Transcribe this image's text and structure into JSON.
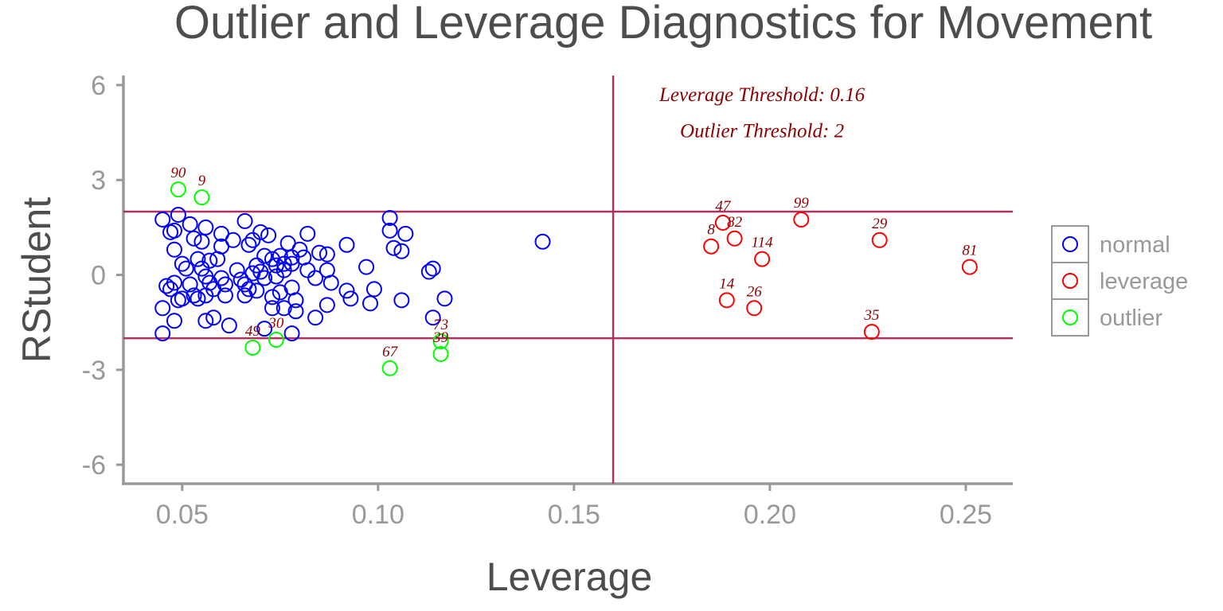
{
  "chart_data": {
    "type": "scatter",
    "title": "Outlier and Leverage Diagnostics for Movement",
    "xlabel": "Leverage",
    "ylabel": "RStudent",
    "xlim": [
      0.035,
      0.262
    ],
    "ylim": [
      -6.6,
      6.3
    ],
    "xticks": [
      "0.05",
      "0.10",
      "0.15",
      "0.20",
      "0.25"
    ],
    "xtick_values": [
      0.05,
      0.1,
      0.15,
      0.2,
      0.25
    ],
    "yticks": [
      "-6",
      "-3",
      "0",
      "3",
      "6"
    ],
    "ytick_values": [
      -6,
      -3,
      0,
      3,
      6
    ],
    "grid": false,
    "legend_placement": "right",
    "thresholds": {
      "leverage": 0.16,
      "outlier_upper": 2,
      "outlier_lower": -2,
      "line_color": "#b03060"
    },
    "annotations": {
      "leverage_text": "Leverage Threshold: 0.16",
      "leverage_text_x": 0.198,
      "leverage_text_y": 5.5,
      "outlier_text": "Outlier Threshold: 2",
      "outlier_text_x": 0.198,
      "outlier_text_y": 4.35,
      "color": "#8b0000"
    },
    "legend": [
      {
        "name": "normal",
        "color": "#0000ff"
      },
      {
        "name": "leverage",
        "color": "#ff0000"
      },
      {
        "name": "outlier",
        "color": "#00ff00"
      }
    ],
    "series": [
      {
        "name": "normal",
        "color": "#0000ff",
        "points": [
          [
            0.045,
            1.75
          ],
          [
            0.049,
            1.9
          ],
          [
            0.047,
            1.35
          ],
          [
            0.048,
            1.4
          ],
          [
            0.048,
            0.8
          ],
          [
            0.05,
            0.35
          ],
          [
            0.046,
            -0.35
          ],
          [
            0.047,
            -0.45
          ],
          [
            0.048,
            -0.25
          ],
          [
            0.049,
            -0.8
          ],
          [
            0.05,
            -0.75
          ],
          [
            0.045,
            -1.05
          ],
          [
            0.048,
            -1.45
          ],
          [
            0.045,
            -1.85
          ],
          [
            0.052,
            1.6
          ],
          [
            0.053,
            1.15
          ],
          [
            0.055,
            1.05
          ],
          [
            0.054,
            0.5
          ],
          [
            0.051,
            0.2
          ],
          [
            0.052,
            -0.3
          ],
          [
            0.053,
            -0.65
          ],
          [
            0.054,
            -0.75
          ],
          [
            0.056,
            1.5
          ],
          [
            0.057,
            0.45
          ],
          [
            0.055,
            0.2
          ],
          [
            0.056,
            -0.05
          ],
          [
            0.057,
            -0.25
          ],
          [
            0.058,
            -0.45
          ],
          [
            0.056,
            -0.65
          ],
          [
            0.058,
            -1.35
          ],
          [
            0.056,
            -1.45
          ],
          [
            0.06,
            1.3
          ],
          [
            0.06,
            0.9
          ],
          [
            0.059,
            0.5
          ],
          [
            0.06,
            -0.1
          ],
          [
            0.061,
            -0.3
          ],
          [
            0.061,
            -0.65
          ],
          [
            0.062,
            -1.6
          ],
          [
            0.063,
            1.1
          ],
          [
            0.064,
            0.15
          ],
          [
            0.065,
            -0.15
          ],
          [
            0.066,
            1.7
          ],
          [
            0.067,
            0.95
          ],
          [
            0.068,
            1.1
          ],
          [
            0.066,
            -0.3
          ],
          [
            0.067,
            -0.45
          ],
          [
            0.066,
            -0.65
          ],
          [
            0.068,
            0.05
          ],
          [
            0.069,
            0.3
          ],
          [
            0.07,
            1.35
          ],
          [
            0.071,
            0.6
          ],
          [
            0.07,
            0.1
          ],
          [
            0.071,
            -0.1
          ],
          [
            0.069,
            -0.5
          ],
          [
            0.071,
            -1.7
          ],
          [
            0.072,
            1.25
          ],
          [
            0.073,
            0.5
          ],
          [
            0.074,
            0.3
          ],
          [
            0.074,
            -0.05
          ],
          [
            0.073,
            -0.7
          ],
          [
            0.073,
            -1.05
          ],
          [
            0.075,
            0.6
          ],
          [
            0.076,
            0.35
          ],
          [
            0.076,
            0.15
          ],
          [
            0.075,
            -0.55
          ],
          [
            0.076,
            -1.05
          ],
          [
            0.077,
            1.0
          ],
          [
            0.078,
            0.55
          ],
          [
            0.078,
            0.35
          ],
          [
            0.078,
            -0.4
          ],
          [
            0.079,
            -0.8
          ],
          [
            0.079,
            -1.15
          ],
          [
            0.08,
            0.8
          ],
          [
            0.081,
            0.55
          ],
          [
            0.082,
            1.3
          ],
          [
            0.082,
            0.15
          ],
          [
            0.084,
            -0.1
          ],
          [
            0.084,
            -1.35
          ],
          [
            0.085,
            0.7
          ],
          [
            0.087,
            0.65
          ],
          [
            0.087,
            0.15
          ],
          [
            0.088,
            -0.25
          ],
          [
            0.087,
            -0.95
          ],
          [
            0.092,
            0.95
          ],
          [
            0.092,
            -0.5
          ],
          [
            0.093,
            -0.75
          ],
          [
            0.097,
            0.25
          ],
          [
            0.098,
            -0.9
          ],
          [
            0.099,
            -0.45
          ],
          [
            0.103,
            1.8
          ],
          [
            0.103,
            1.4
          ],
          [
            0.104,
            0.85
          ],
          [
            0.106,
            0.75
          ],
          [
            0.107,
            1.3
          ],
          [
            0.106,
            -0.8
          ],
          [
            0.113,
            0.1
          ],
          [
            0.114,
            0.2
          ],
          [
            0.114,
            -1.35
          ],
          [
            0.117,
            -0.75
          ],
          [
            0.142,
            1.05
          ],
          [
            0.078,
            -1.85
          ]
        ]
      },
      {
        "name": "leverage",
        "color": "#ff0000",
        "points": [
          [
            0.188,
            1.65,
            "47"
          ],
          [
            0.208,
            1.75,
            "99"
          ],
          [
            0.191,
            1.15,
            "82"
          ],
          [
            0.185,
            0.9,
            "8"
          ],
          [
            0.228,
            1.1,
            "29"
          ],
          [
            0.198,
            0.5,
            "114"
          ],
          [
            0.251,
            0.25,
            "81"
          ],
          [
            0.189,
            -0.8,
            "14"
          ],
          [
            0.196,
            -1.05,
            "26"
          ],
          [
            0.226,
            -1.8,
            "35"
          ]
        ]
      },
      {
        "name": "outlier",
        "color": "#00ff00",
        "points": [
          [
            0.049,
            2.7,
            "90"
          ],
          [
            0.055,
            2.45,
            "9"
          ],
          [
            0.068,
            -2.3,
            "49"
          ],
          [
            0.074,
            -2.05,
            "30"
          ],
          [
            0.103,
            -2.95,
            "67"
          ],
          [
            0.116,
            -2.1,
            "73"
          ],
          [
            0.116,
            -2.5,
            "39"
          ]
        ]
      }
    ]
  }
}
